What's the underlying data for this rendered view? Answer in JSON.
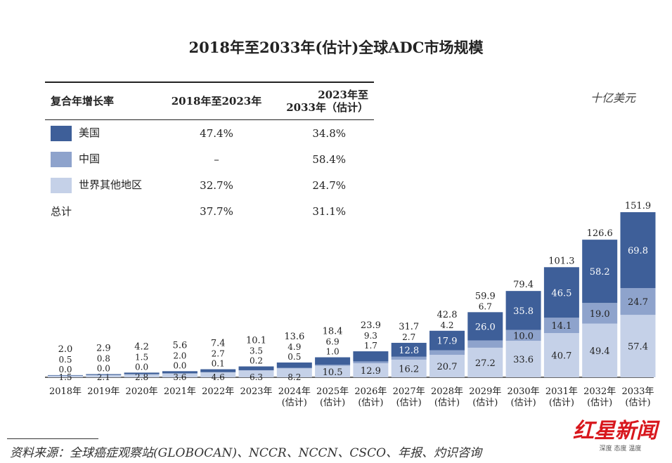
{
  "chart_data": {
    "type": "bar",
    "stacked": true,
    "title": "2018年至2033年(估计)全球ADC市场规模",
    "unit": "十亿美元",
    "categories": [
      "2018年",
      "2019年",
      "2020年",
      "2021年",
      "2022年",
      "2023年",
      "2024年\n(估计)",
      "2025年\n(估计)",
      "2026年\n(估计)",
      "2027年\n(估计)",
      "2028年\n(估计)",
      "2029年\n(估计)",
      "2030年\n(估计)",
      "2031年\n(估计)",
      "2032年\n(估计)",
      "2033年\n(估计)"
    ],
    "series": [
      {
        "name": "世界其他地区",
        "color": "#c5d1e8",
        "values": [
          1.5,
          2.1,
          2.8,
          3.6,
          4.6,
          6.3,
          8.2,
          10.5,
          12.9,
          16.2,
          20.7,
          27.2,
          33.6,
          40.7,
          49.4,
          57.4
        ]
      },
      {
        "name": "中国",
        "color": "#8ea3cc",
        "values": [
          0.0,
          0.0,
          0.0,
          0.0,
          0.1,
          0.2,
          0.5,
          1.0,
          1.7,
          2.7,
          4.2,
          6.7,
          10.0,
          14.1,
          19.0,
          24.7
        ]
      },
      {
        "name": "美国",
        "color": "#3e5f99",
        "values": [
          0.5,
          0.8,
          1.5,
          2.0,
          2.7,
          3.5,
          4.9,
          6.9,
          9.3,
          12.8,
          17.9,
          26.0,
          35.8,
          46.5,
          58.2,
          69.8
        ]
      }
    ],
    "totals": [
      2.0,
      2.9,
      4.2,
      5.6,
      7.4,
      10.1,
      13.6,
      18.4,
      23.9,
      31.7,
      42.8,
      59.9,
      79.4,
      101.3,
      126.6,
      151.9
    ],
    "ylim": [
      0,
      155
    ],
    "grid": false
  },
  "table": {
    "headers": [
      "复合年增长率",
      "2018年至2023年",
      "2023年至\n2033年（估计）"
    ],
    "rows": [
      {
        "label": "美国",
        "color": "#3e5f99",
        "a": "47.4%",
        "b": "34.8%"
      },
      {
        "label": "中国",
        "color": "#8ea3cc",
        "a": "–",
        "b": "58.4%"
      },
      {
        "label": "世界其他地区",
        "color": "#c5d1e8",
        "a": "32.7%",
        "b": "24.7%"
      },
      {
        "label": "总计",
        "color": "",
        "a": "37.7%",
        "b": "31.1%"
      }
    ]
  },
  "source": "资料来源：全球癌症观察站(GLOBOCAN)、NCCR、NCCN、CSCO、年报、灼识咨询",
  "logo": {
    "name": "红星新闻",
    "tagline": "深度 态度 温度"
  }
}
